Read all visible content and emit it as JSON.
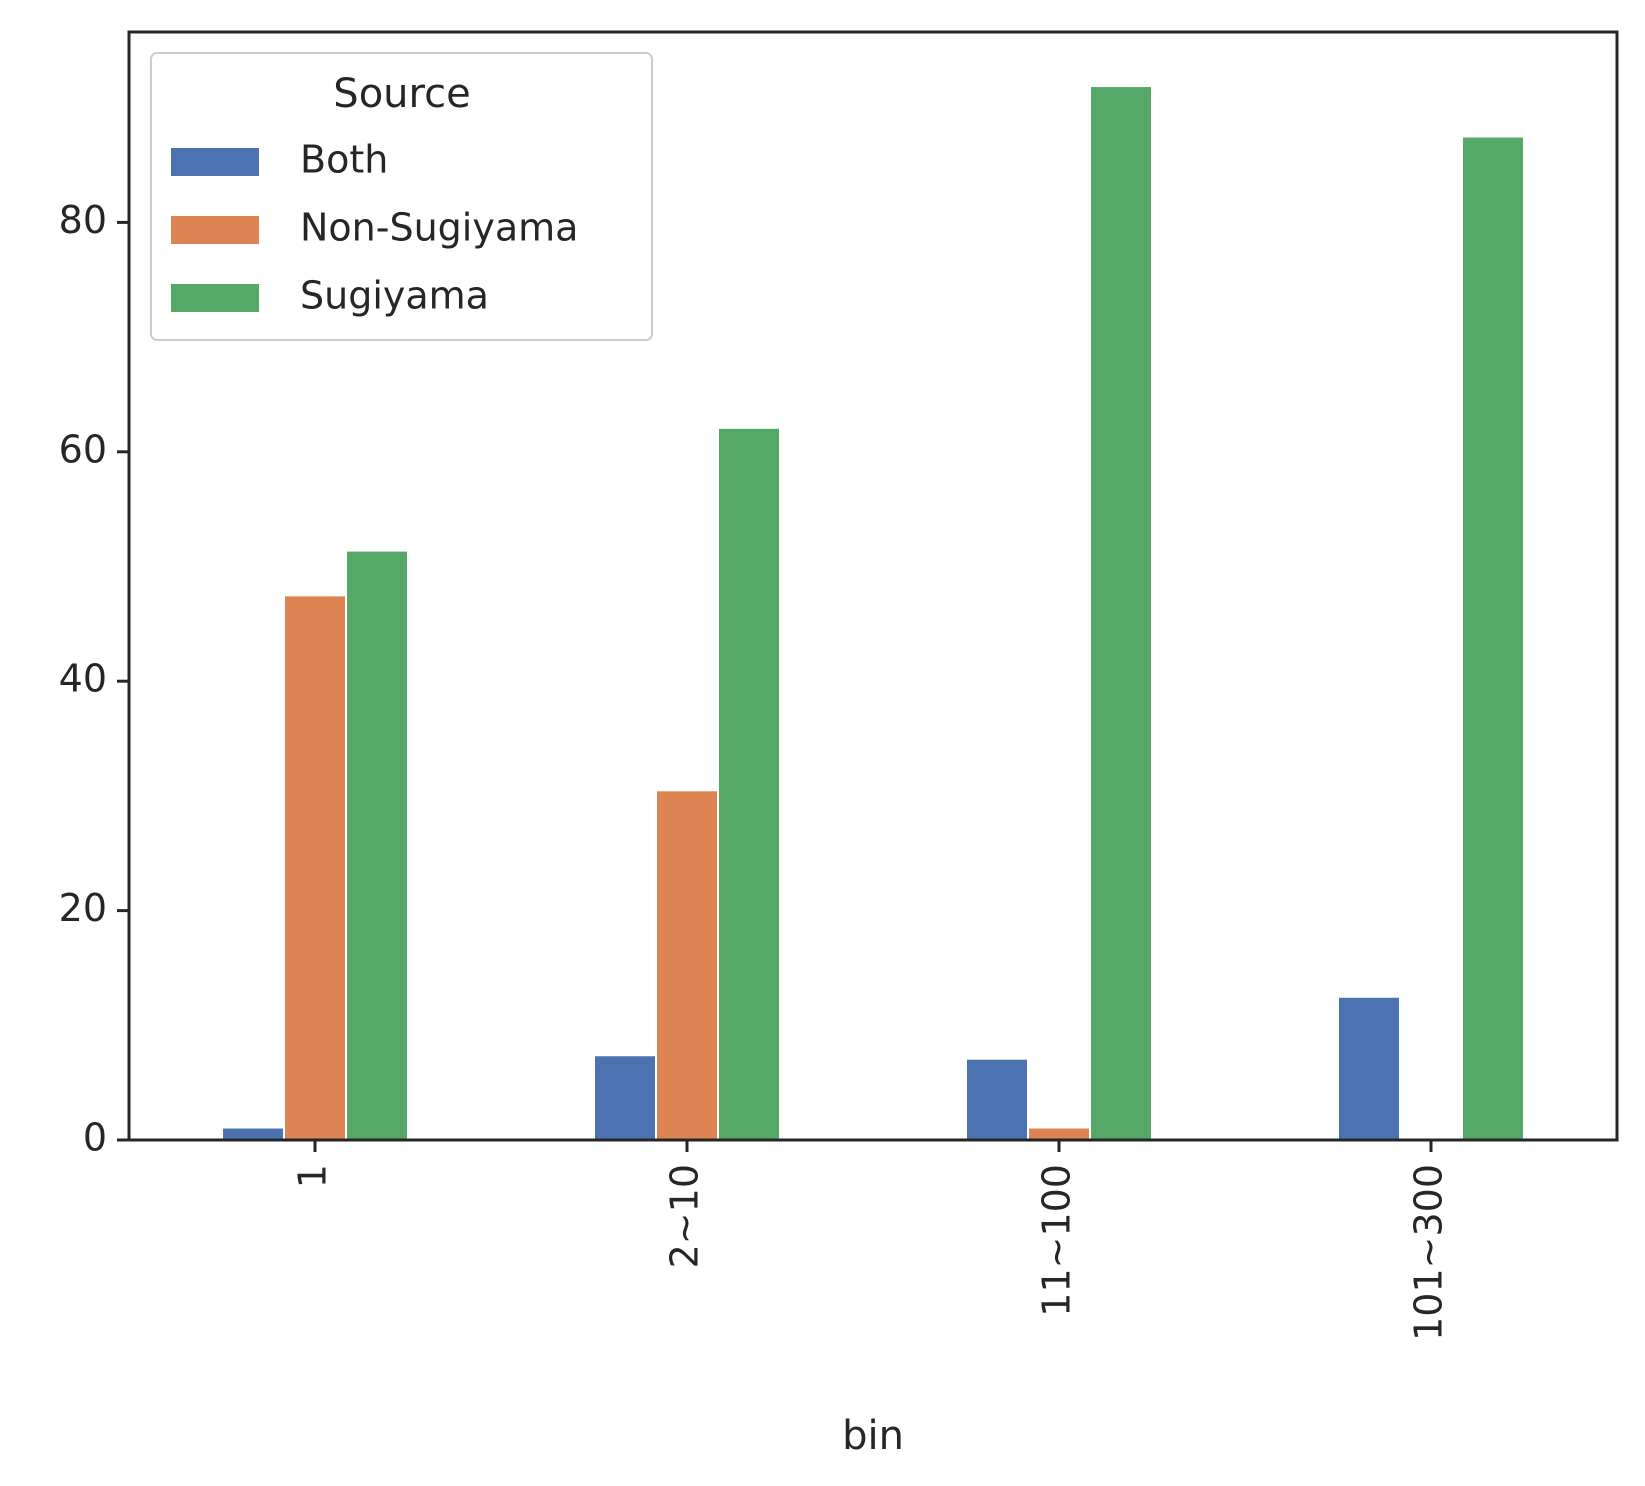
{
  "chart_data": {
    "type": "bar",
    "title": "",
    "xlabel": "bin",
    "ylabel": "",
    "categories": [
      "1",
      "2~10",
      "11~100",
      "101~300"
    ],
    "series": [
      {
        "name": "Both",
        "color": "#4c72b0",
        "values": [
          1.0,
          7.3,
          7.0,
          12.4
        ]
      },
      {
        "name": "Non-Sugiyama",
        "color": "#dd8452",
        "values": [
          47.4,
          30.4,
          1.0,
          0
        ]
      },
      {
        "name": "Sugiyama",
        "color": "#55a868",
        "values": [
          51.3,
          62.0,
          91.8,
          87.4
        ]
      }
    ],
    "ylim": [
      0,
      96.6
    ],
    "yticks": [
      0,
      20,
      40,
      60,
      80
    ],
    "legend": {
      "title": "Source",
      "position": "top-left"
    },
    "grid": false
  }
}
